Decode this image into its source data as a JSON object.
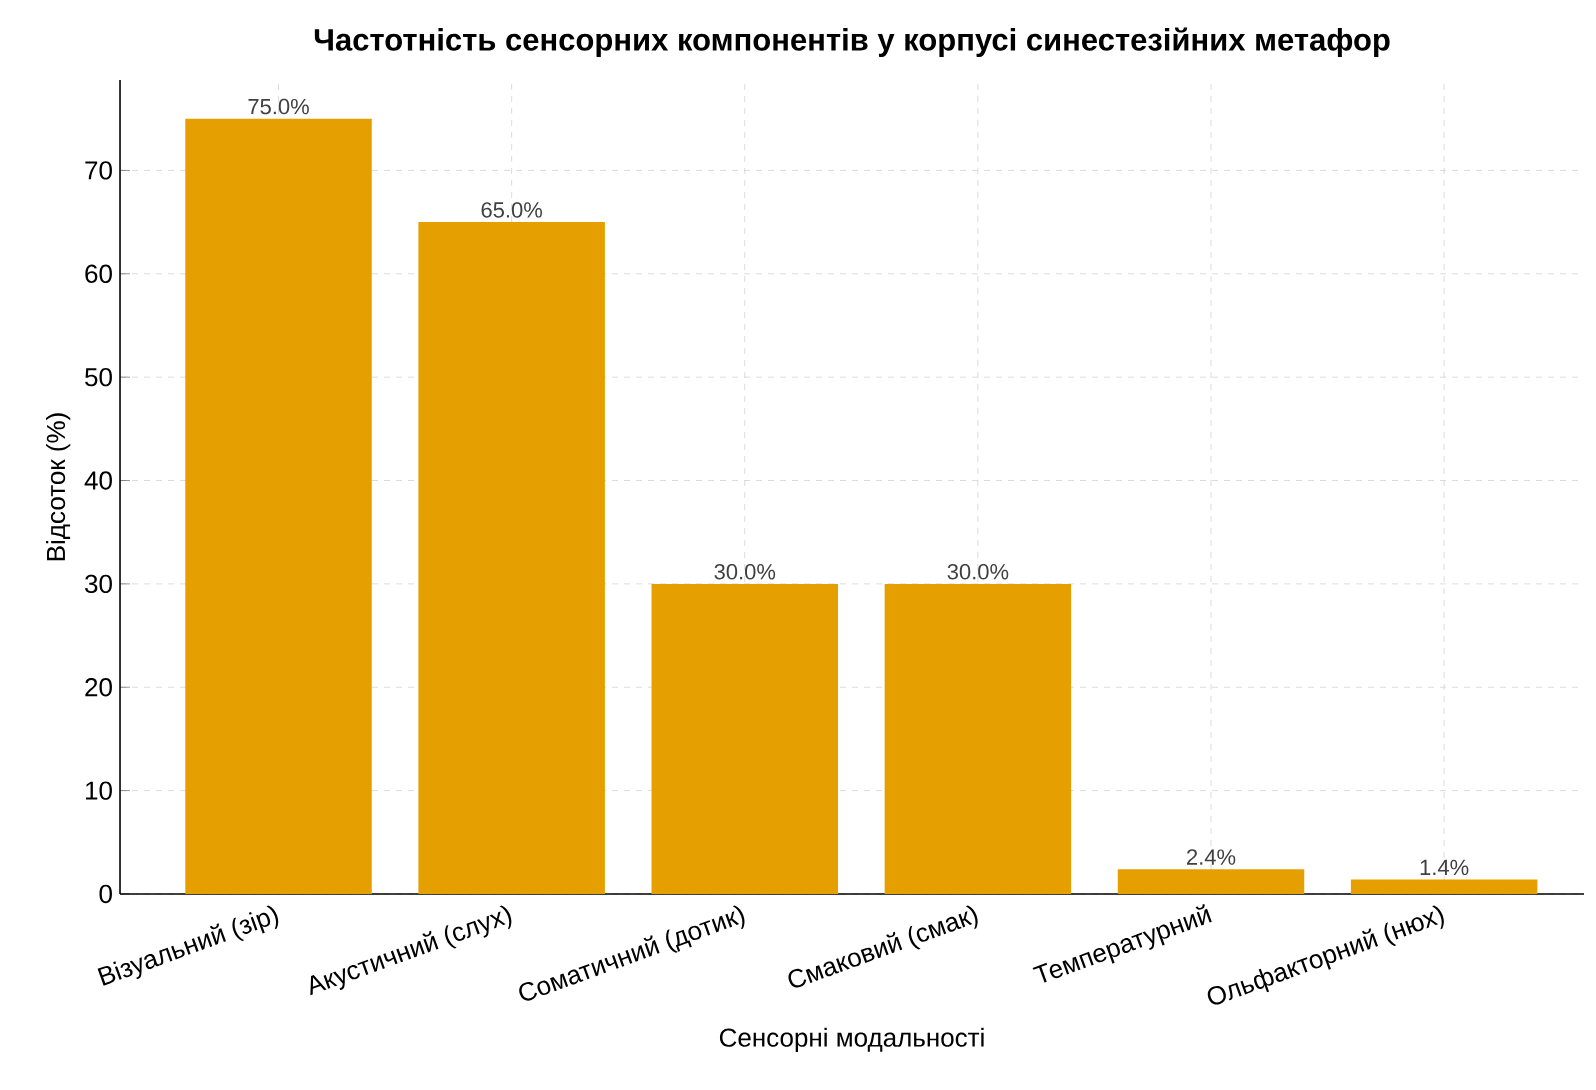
{
  "chart_data": {
    "type": "bar",
    "title": "Частотність сенсорних компонентів у корпусі синестезійних метафор",
    "xlabel": "Сенсорні модальності",
    "ylabel": "Відсоток (%)",
    "categories": [
      "Візуальний (зір)",
      "Акустичний (слух)",
      "Соматичний (дотик)",
      "Смаковий (смак)",
      "Температурний",
      "Ольфакторний (нюх)"
    ],
    "values": [
      75.0,
      65.0,
      30.0,
      30.0,
      2.4,
      1.4
    ],
    "value_labels": [
      "75.0%",
      "65.0%",
      "30.0%",
      "30.0%",
      "2.4%",
      "1.4%"
    ],
    "color": "#e5a000",
    "ylim": [
      0,
      78.75
    ],
    "yticks": [
      0,
      10,
      20,
      30,
      40,
      50,
      60,
      70
    ],
    "grid": true
  }
}
